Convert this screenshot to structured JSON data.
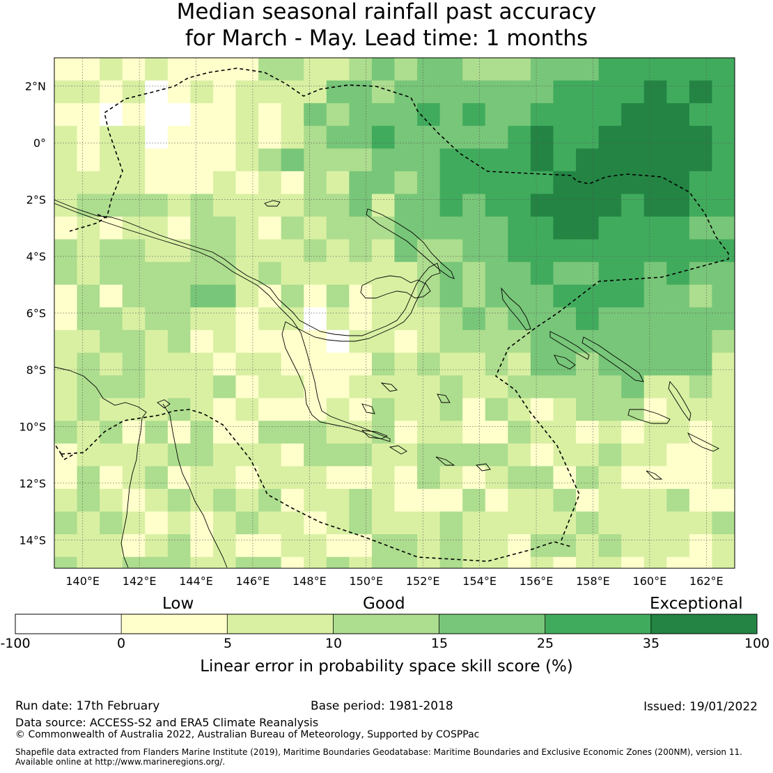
{
  "title": {
    "line1": "Median seasonal rainfall past accuracy",
    "line2": "for March - May. Lead time: 1 months"
  },
  "map": {
    "lat_range": [
      -15,
      3
    ],
    "lon_range": [
      139,
      163
    ],
    "lat_ticks": [
      "2°N",
      "0°",
      "2°S",
      "4°S",
      "6°S",
      "8°S",
      "10°S",
      "12°S",
      "14°S"
    ],
    "lat_tick_values": [
      2,
      0,
      -2,
      -4,
      -6,
      -8,
      -10,
      -12,
      -14
    ],
    "lon_ticks": [
      "140°E",
      "142°E",
      "144°E",
      "146°E",
      "148°E",
      "150°E",
      "152°E",
      "154°E",
      "156°E",
      "158°E",
      "160°E",
      "162°E"
    ],
    "lon_tick_values": [
      140,
      142,
      144,
      146,
      148,
      150,
      152,
      154,
      156,
      158,
      160,
      162
    ],
    "grid_resolution_deg": [
      0.8,
      0.8
    ],
    "overlay": "dashed maritime boundary (EEZ) line and coastlines"
  },
  "colorbar": {
    "category_labels": [
      "Low",
      "Good",
      "Exceptional"
    ],
    "ticks": [
      "-100",
      "0",
      "5",
      "10",
      "15",
      "25",
      "35",
      "100"
    ],
    "colors": [
      "#ffffff",
      "#ffffcc",
      "#d9f0a3",
      "#addd8e",
      "#78c679",
      "#41ab5d",
      "#238443"
    ],
    "title": "Linear error in probability space skill score (%)"
  },
  "footer": {
    "run_date": "Run date: 17th February",
    "base_period": "Base period: 1981-2018",
    "issued": "Issued: 19/01/2022",
    "data_source": "Data source: ACCESS-S2 and ERA5 Climate Reanalysis",
    "copyright": "© Commonwealth of Australia 2022, Australian Bureau of Meteorology, Supported by COSPPac",
    "shapefile_line1": "Shapefile data extracted from Flanders Marine Institute (2019), Maritime Boundaries Geodatabase: Maritime Boundaries and Exclusive Economic Zones (200NM), version 11.",
    "shapefile_line2": "Available online at http://www.marineregions.org/."
  }
}
